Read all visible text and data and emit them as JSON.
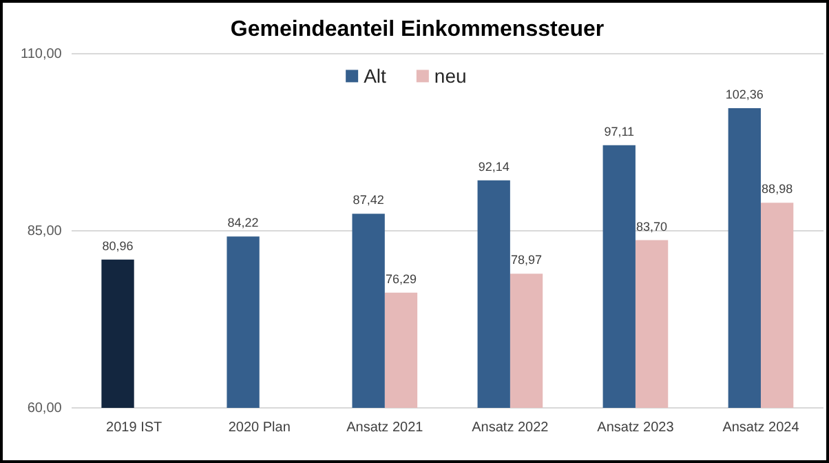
{
  "chart_data": {
    "type": "bar",
    "title": "Gemeindeanteil Einkommenssteuer",
    "categories": [
      "2019 IST",
      "2020 Plan",
      "Ansatz 2021",
      "Ansatz 2022",
      "Ansatz 2023",
      "Ansatz 2024"
    ],
    "series": [
      {
        "name": "Alt",
        "color": "#355f8d",
        "colors": [
          "#13263f",
          "#355f8d",
          "#355f8d",
          "#355f8d",
          "#355f8d",
          "#355f8d"
        ],
        "values": [
          80.96,
          84.22,
          87.42,
          92.14,
          97.11,
          102.36
        ],
        "value_labels": [
          "80,96",
          "84,22",
          "87,42",
          "92,14",
          "97,11",
          "102,36"
        ]
      },
      {
        "name": "neu",
        "color": "#e6b9b8",
        "values": [
          null,
          null,
          76.29,
          78.97,
          83.7,
          88.98
        ],
        "value_labels": [
          null,
          null,
          "76,29",
          "78,97",
          "83,70",
          "88,98"
        ]
      }
    ],
    "ylim": [
      60,
      110
    ],
    "yticks": [
      {
        "value": 60,
        "label": "60,00"
      },
      {
        "value": 85,
        "label": "85,00"
      },
      {
        "value": 110,
        "label": "110,00"
      }
    ],
    "grid": "y",
    "legend": "top"
  }
}
